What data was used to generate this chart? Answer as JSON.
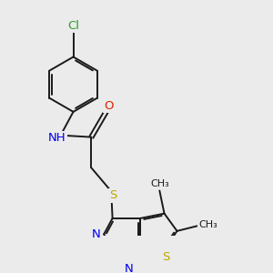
{
  "bg_color": "#ebebeb",
  "bond_color": "#1a1a1a",
  "bond_width": 1.4,
  "atom_labels": {
    "Cl": {
      "color": "#2ca02c",
      "fontsize": 9.5
    },
    "N": {
      "color": "#0000ee",
      "fontsize": 9.5
    },
    "NH": {
      "color": "#0000ee",
      "fontsize": 9.5
    },
    "O": {
      "color": "#dd2200",
      "fontsize": 9.5
    },
    "S": {
      "color": "#bbaa00",
      "fontsize": 9.5
    }
  },
  "methyl_fontsize": 8.0,
  "methyl_color": "#1a1a1a"
}
